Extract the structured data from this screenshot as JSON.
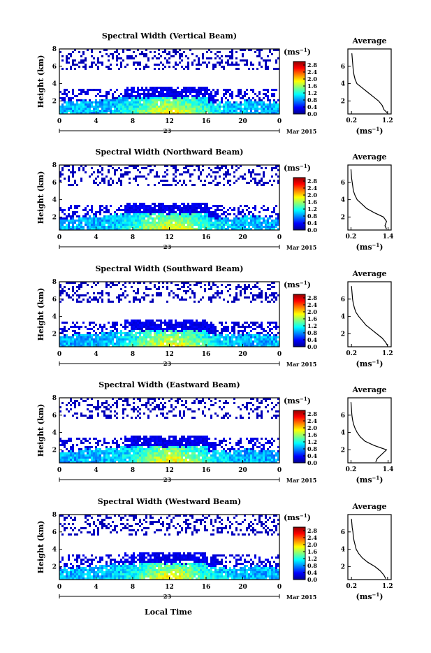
{
  "figure": {
    "xlabel": "Local Time",
    "date_label": "23",
    "month_label": "Mar 2015",
    "colorbar_unit": "(ms",
    "colorbar_unit_sup": "−1",
    "colorbar_unit_close": ")",
    "avg_title": "Average",
    "ylabel": "Height (km)"
  },
  "colors": {
    "colormap": [
      "#00008f",
      "#0000ff",
      "#0080ff",
      "#00ffff",
      "#80ff80",
      "#ffff00",
      "#ff8000",
      "#ff0000",
      "#8f0000"
    ],
    "line": "#000000"
  },
  "chart_data": [
    {
      "type": "heatmap",
      "title": "Spectral Width (Vertical Beam)",
      "x_ticks": [
        "0",
        "4",
        "8",
        "12",
        "16",
        "20",
        "0"
      ],
      "y_ticks": [
        "8",
        "6",
        "4",
        "2"
      ],
      "xlim": [
        0,
        24
      ],
      "ylim": [
        0.5,
        8
      ],
      "colorbar_ticks": [
        "2.8",
        "2.4",
        "2.0",
        "1.6",
        "1.2",
        "0.8",
        "0.4",
        "0.0"
      ],
      "colorbar_range": [
        0,
        3
      ],
      "avg_profile": {
        "type": "line",
        "x_ticks": [
          "0.2",
          "1.2"
        ],
        "xlim": [
          0.1,
          1.3
        ],
        "y_ticks": [
          "6",
          "4",
          "2"
        ],
        "ylim": [
          0.5,
          8
        ],
        "xlabel": "(ms",
        "xlabel_sup": "−1",
        "xlabel_close": ")",
        "height_km": [
          0.6,
          1.0,
          1.5,
          2.0,
          2.5,
          3.0,
          3.5,
          4.0,
          4.5,
          5.0,
          5.5,
          6.0,
          6.5,
          7.0,
          7.5
        ],
        "width": [
          1.2,
          1.1,
          1.05,
          0.95,
          0.8,
          0.65,
          0.5,
          0.35,
          0.3,
          0.27,
          0.25,
          0.24,
          0.23,
          0.22,
          0.21
        ]
      }
    },
    {
      "type": "heatmap",
      "title": "Spectral Width (Northward Beam)",
      "x_ticks": [
        "0",
        "4",
        "8",
        "12",
        "16",
        "20",
        "0"
      ],
      "y_ticks": [
        "8",
        "6",
        "4",
        "2"
      ],
      "xlim": [
        0,
        24
      ],
      "ylim": [
        0.5,
        8
      ],
      "colorbar_ticks": [
        "2.8",
        "2.4",
        "2.0",
        "1.6",
        "1.2",
        "0.8",
        "0.4",
        "0.0"
      ],
      "colorbar_range": [
        0,
        3
      ],
      "avg_profile": {
        "type": "line",
        "x_ticks": [
          "0.2",
          "1.4"
        ],
        "xlim": [
          0.1,
          1.5
        ],
        "y_ticks": [
          "6",
          "4",
          "2"
        ],
        "ylim": [
          0.5,
          8
        ],
        "xlabel": "(ms",
        "xlabel_sup": "−1",
        "xlabel_close": ")",
        "height_km": [
          0.6,
          1.0,
          1.5,
          2.0,
          2.5,
          3.0,
          3.5,
          4.0,
          4.5,
          5.0,
          5.5,
          6.0,
          6.5,
          7.0,
          7.5
        ],
        "width": [
          1.35,
          1.3,
          1.35,
          1.25,
          0.95,
          0.7,
          0.55,
          0.4,
          0.33,
          0.28,
          0.26,
          0.24,
          0.22,
          0.21,
          0.2
        ]
      }
    },
    {
      "type": "heatmap",
      "title": "Spectral Width (Southward Beam)",
      "x_ticks": [
        "0",
        "4",
        "8",
        "12",
        "16",
        "20",
        "0"
      ],
      "y_ticks": [
        "8",
        "6",
        "4",
        "2"
      ],
      "xlim": [
        0,
        24
      ],
      "ylim": [
        0.5,
        8
      ],
      "colorbar_ticks": [
        "2.8",
        "2.4",
        "2.0",
        "1.6",
        "1.2",
        "0.8",
        "0.4",
        "0.0"
      ],
      "colorbar_range": [
        0,
        3
      ],
      "avg_profile": {
        "type": "line",
        "x_ticks": [
          "0.2",
          "1.2"
        ],
        "xlim": [
          0.1,
          1.3
        ],
        "y_ticks": [
          "6",
          "4",
          "2"
        ],
        "ylim": [
          0.5,
          8
        ],
        "xlabel": "(ms",
        "xlabel_sup": "−1",
        "xlabel_close": ")",
        "height_km": [
          0.6,
          1.0,
          1.5,
          2.0,
          2.5,
          3.0,
          3.5,
          4.0,
          4.5,
          5.0,
          5.5,
          6.0,
          6.5,
          7.0,
          7.5
        ],
        "width": [
          1.2,
          1.15,
          1.05,
          0.9,
          0.75,
          0.6,
          0.5,
          0.4,
          0.32,
          0.28,
          0.25,
          0.23,
          0.22,
          0.21,
          0.2
        ]
      }
    },
    {
      "type": "heatmap",
      "title": "Spectral Width (Eastward Beam)",
      "x_ticks": [
        "0",
        "4",
        "8",
        "12",
        "16",
        "20",
        "0"
      ],
      "y_ticks": [
        "8",
        "6",
        "4",
        "2"
      ],
      "xlim": [
        0,
        24
      ],
      "ylim": [
        0.5,
        8
      ],
      "colorbar_ticks": [
        "2.8",
        "2.4",
        "2.0",
        "1.6",
        "1.2",
        "0.8",
        "0.4",
        "0.0"
      ],
      "colorbar_range": [
        0,
        3
      ],
      "avg_profile": {
        "type": "line",
        "x_ticks": [
          "0.2",
          "1.4"
        ],
        "xlim": [
          0.1,
          1.5
        ],
        "y_ticks": [
          "6",
          "4",
          "2"
        ],
        "ylim": [
          0.5,
          8
        ],
        "xlabel": "(ms",
        "xlabel_sup": "−1",
        "xlabel_close": ")",
        "height_km": [
          0.6,
          1.0,
          1.5,
          2.0,
          2.5,
          3.0,
          3.5,
          4.0,
          4.5,
          5.0,
          5.5,
          6.0,
          6.5,
          7.0,
          7.5
        ],
        "width": [
          1.0,
          1.05,
          1.2,
          1.35,
          0.95,
          0.65,
          0.5,
          0.4,
          0.33,
          0.28,
          0.25,
          0.23,
          0.22,
          0.21,
          0.2
        ]
      }
    },
    {
      "type": "heatmap",
      "title": "Spectral Width (Westward Beam)",
      "x_ticks": [
        "0",
        "4",
        "8",
        "12",
        "16",
        "20",
        "0"
      ],
      "y_ticks": [
        "8",
        "6",
        "4",
        "2"
      ],
      "xlim": [
        0,
        24
      ],
      "ylim": [
        0.5,
        8
      ],
      "colorbar_ticks": [
        "2.8",
        "2.4",
        "2.0",
        "1.6",
        "1.2",
        "0.8",
        "0.4",
        "0.0"
      ],
      "colorbar_range": [
        0,
        3
      ],
      "avg_profile": {
        "type": "line",
        "x_ticks": [
          "0.2",
          "1.2"
        ],
        "xlim": [
          0.1,
          1.3
        ],
        "y_ticks": [
          "6",
          "4",
          "2"
        ],
        "ylim": [
          0.5,
          8
        ],
        "xlabel": "(ms",
        "xlabel_sup": "−1",
        "xlabel_close": ")",
        "height_km": [
          0.6,
          1.0,
          1.5,
          2.0,
          2.5,
          3.0,
          3.5,
          4.0,
          4.5,
          5.0,
          5.5,
          6.0,
          6.5,
          7.0,
          7.5
        ],
        "width": [
          1.15,
          1.1,
          1.0,
          0.85,
          0.65,
          0.5,
          0.4,
          0.33,
          0.3,
          0.27,
          0.25,
          0.24,
          0.22,
          0.21,
          0.2
        ]
      }
    }
  ]
}
